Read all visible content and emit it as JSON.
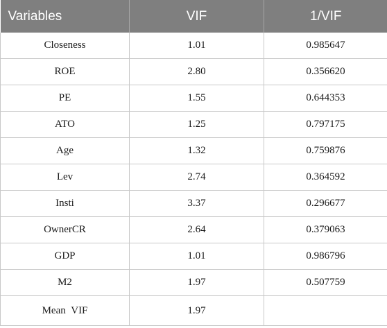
{
  "table": {
    "headers": [
      "Variables",
      "VIF",
      "1/VIF"
    ],
    "rows": [
      [
        "Closeness",
        "1.01",
        "0.985647"
      ],
      [
        "ROE",
        "2.80",
        "0.356620"
      ],
      [
        "PE",
        "1.55",
        "0.644353"
      ],
      [
        "ATO",
        "1.25",
        "0.797175"
      ],
      [
        "Age",
        "1.32",
        "0.759876"
      ],
      [
        "Lev",
        "2.74",
        "0.364592"
      ],
      [
        "Insti",
        "3.37",
        "0.296677"
      ],
      [
        "OwnerCR",
        "2.64",
        "0.379063"
      ],
      [
        "GDP",
        "1.01",
        "0.986796"
      ],
      [
        "M2",
        "1.97",
        "0.507759"
      ],
      [
        "Mean  VIF",
        "1.97",
        ""
      ]
    ]
  }
}
